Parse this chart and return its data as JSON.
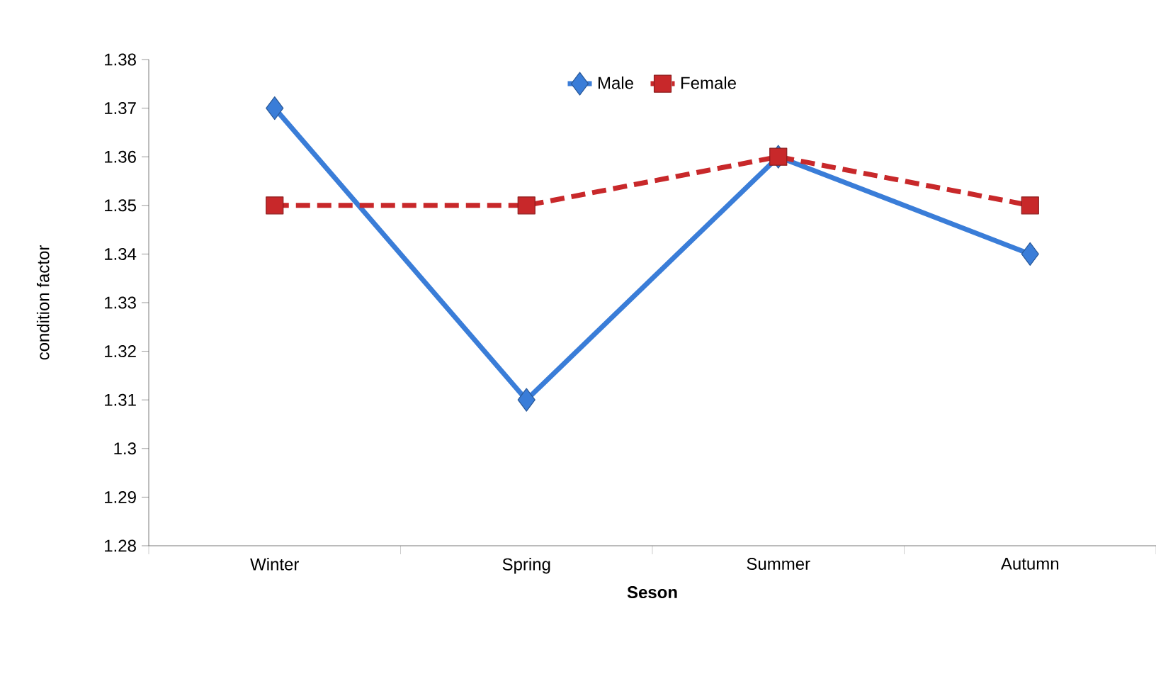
{
  "chart_data": {
    "type": "line",
    "xlabel": "Seson",
    "ylabel": "condition factor",
    "categories": [
      "Winter",
      "Spring",
      "Summer",
      "Autumn"
    ],
    "series": [
      {
        "name": "Male",
        "color": "#3a7dd8",
        "values": [
          1.37,
          1.31,
          1.36,
          1.34
        ],
        "marker": "diamond",
        "line_style": "solid"
      },
      {
        "name": "Female",
        "color": "#c8282a",
        "values": [
          1.35,
          1.35,
          1.36,
          1.35
        ],
        "marker": "square",
        "line_style": "dashed"
      }
    ],
    "ylim": [
      1.28,
      1.38
    ],
    "yticks": [
      1.28,
      1.29,
      1.3,
      1.31,
      1.32,
      1.33,
      1.34,
      1.35,
      1.36,
      1.37,
      1.38
    ],
    "grid": false,
    "legend": "top"
  }
}
